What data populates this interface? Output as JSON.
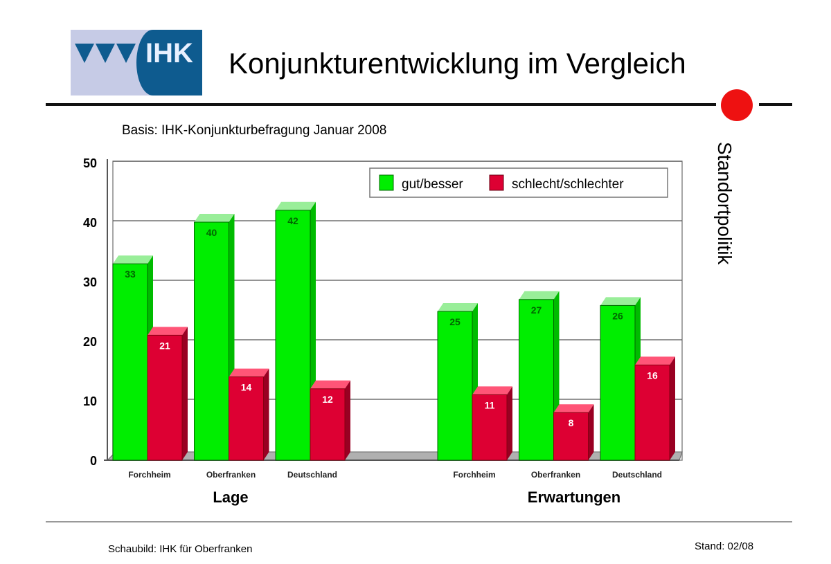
{
  "header": {
    "logo_text": "IHK",
    "title": "Konjunkturentwicklung im Vergleich",
    "side_label": "Standortpolitik"
  },
  "footer": {
    "source": "Schaubild: IHK für Oberfranken",
    "stand": "Stand: 02/08"
  },
  "chart_data": {
    "type": "bar",
    "subtitle": "Basis: IHK-Konjunkturbefragung Januar 2008",
    "groups": [
      {
        "label": "Lage",
        "categories": [
          "Forchheim",
          "Oberfranken",
          "Deutschland"
        ]
      },
      {
        "label": "Erwartungen",
        "categories": [
          "Forchheim",
          "Oberfranken",
          "Deutschland"
        ]
      }
    ],
    "series": [
      {
        "name": "gut/besser",
        "color": "#00ee00",
        "values": [
          [
            33,
            40,
            42
          ],
          [
            25,
            27,
            26
          ]
        ]
      },
      {
        "name": "schlecht/schlechter",
        "color": "#dd0033",
        "values": [
          [
            21,
            14,
            12
          ],
          [
            11,
            8,
            16
          ]
        ]
      }
    ],
    "ylim": [
      0,
      50
    ],
    "yticks": [
      "0",
      "10",
      "20",
      "30",
      "40",
      "50"
    ],
    "grid": true,
    "legend": "top-right",
    "style": "3d"
  }
}
